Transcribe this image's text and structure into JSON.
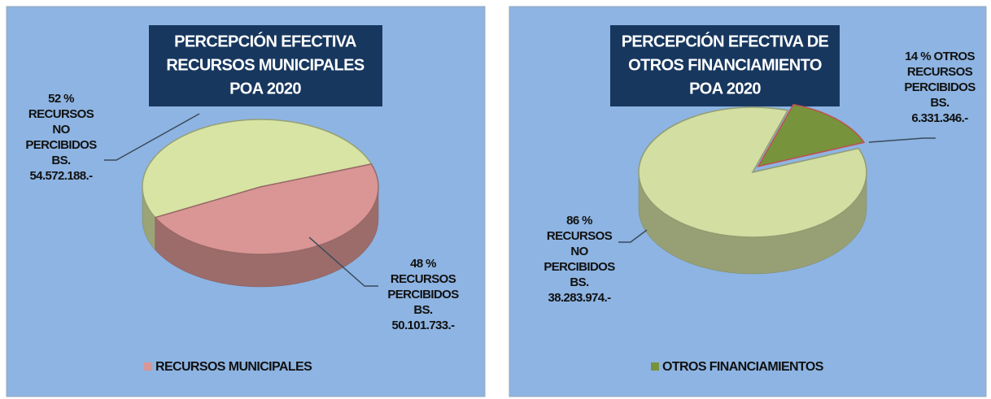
{
  "chart_data": [
    {
      "type": "pie",
      "title": [
        "PERCEPCIÓN EFECTIVA",
        "RECURSOS MUNICIPALES",
        "POA 2020"
      ],
      "values": [
        52,
        48
      ],
      "value_labels": [
        "52 %",
        "48 %"
      ],
      "labels": [
        [
          "RECURSOS",
          "NO",
          "PERCIBIDOS",
          "BS.",
          "54.572.188.-"
        ],
        [
          "RECURSOS",
          "PERCIBIDOS",
          "BS.",
          "50.101.733.-"
        ]
      ],
      "colors": [
        "#d7e4a4",
        "#d99694"
      ],
      "legend": {
        "name": "RECURSOS MUNICIPALES",
        "color": "#d99694"
      }
    },
    {
      "type": "pie",
      "title": [
        "PERCEPCIÓN EFECTIVA DE",
        "OTROS FINANCIAMIENTO",
        "POA 2020"
      ],
      "values": [
        86,
        14
      ],
      "value_labels": [
        "86 %",
        "14 %"
      ],
      "labels": [
        [
          "RECURSOS",
          "NO",
          "PERCIBIDOS",
          "BS.",
          "38.283.974.-"
        ],
        [
          "OTROS",
          "RECURSOS",
          "PERCIBIDOS",
          "BS.",
          "6.331.346.-"
        ]
      ],
      "colors": [
        "#d2dea2",
        "#77933c"
      ],
      "legend": {
        "name": "OTROS FINANCIAMIENTOS",
        "color": "#77933c"
      }
    }
  ]
}
